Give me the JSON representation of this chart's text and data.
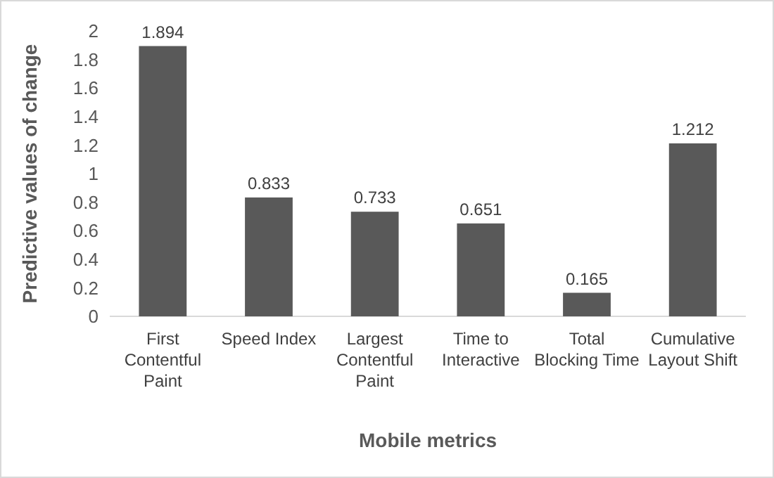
{
  "chart_data": {
    "type": "bar",
    "xlabel": "Mobile metrics",
    "ylabel": "Predictive values of change",
    "categories": [
      "First Contentful Paint",
      "Speed Index",
      "Largest Contentful Paint",
      "Time to Interactive",
      "Total Blocking Time",
      "Cumulative Layout Shift"
    ],
    "values": [
      1.894,
      0.833,
      0.733,
      0.651,
      0.165,
      1.212
    ],
    "color": "#595959",
    "ylim": [
      0,
      2
    ],
    "yticks": [
      0,
      0.2,
      0.4,
      0.6,
      0.8,
      1,
      1.2,
      1.4,
      1.6,
      1.8,
      2
    ],
    "grid": false,
    "data_labels": true
  }
}
